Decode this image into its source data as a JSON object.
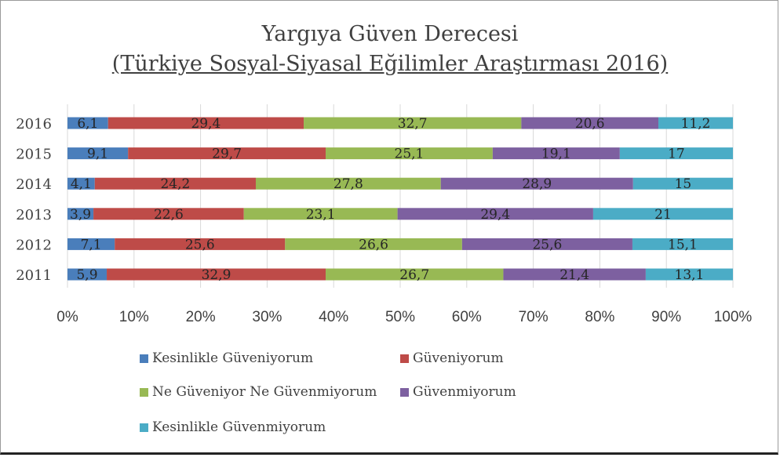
{
  "chart_data": {
    "type": "bar",
    "orientation": "horizontal",
    "stacked": "percent",
    "title": "Yargıya Güven Derecesi",
    "subtitle": "(Türkiye Sosyal-Siyasal Eğilimler Araştırması 2016)",
    "categories": [
      "2016",
      "2015",
      "2014",
      "2013",
      "2012",
      "2011"
    ],
    "series": [
      {
        "name": "Kesinlikle Güveniyorum",
        "color": "#4a7ebb",
        "values": [
          6.1,
          9.1,
          4.1,
          3.9,
          7.1,
          5.9
        ],
        "labels": [
          "6,1",
          "9,1",
          "4,1",
          "3,9",
          "7,1",
          "5,9"
        ]
      },
      {
        "name": "Güveniyorum",
        "color": "#be4b48",
        "values": [
          29.4,
          29.7,
          24.2,
          22.6,
          25.6,
          32.9
        ],
        "labels": [
          "29,4",
          "29,7",
          "24,2",
          "22,6",
          "25,6",
          "32,9"
        ]
      },
      {
        "name": "Ne Güveniyor Ne Güvenmiyorum",
        "color": "#98b954",
        "values": [
          32.7,
          25.1,
          27.8,
          23.1,
          26.6,
          26.7
        ],
        "labels": [
          "32,7",
          "25,1",
          "27,8",
          "23,1",
          "26,6",
          "26,7"
        ]
      },
      {
        "name": "Güvenmiyorum",
        "color": "#7d60a0",
        "values": [
          20.6,
          19.1,
          28.9,
          29.4,
          25.6,
          21.4
        ],
        "labels": [
          "20,6",
          "19,1",
          "28,9",
          "29,4",
          "25,6",
          "21,4"
        ]
      },
      {
        "name": "Kesinlikle Güvenmiyorum",
        "color": "#4bacc6",
        "values": [
          11.2,
          17,
          15,
          21,
          15.1,
          13.1
        ],
        "labels": [
          "11,2",
          "17",
          "15",
          "21",
          "15,1",
          "13,1"
        ]
      }
    ],
    "xticks": [
      "0%",
      "10%",
      "20%",
      "30%",
      "40%",
      "50%",
      "60%",
      "70%",
      "80%",
      "90%",
      "100%"
    ],
    "xlim": [
      0,
      100
    ],
    "grid": true,
    "legend": "bottom"
  }
}
